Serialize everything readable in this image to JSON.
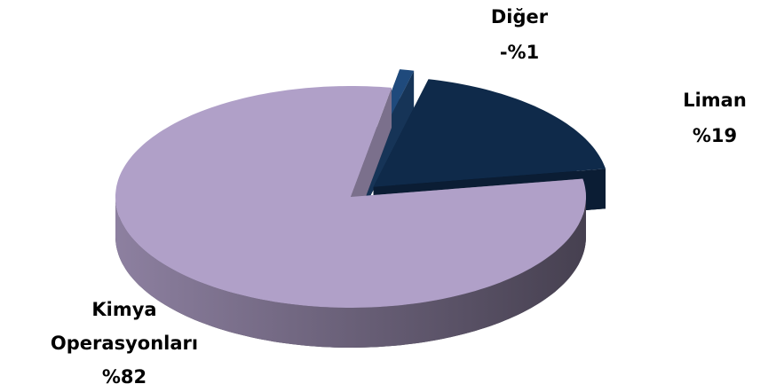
{
  "chart_data": {
    "type": "pie",
    "categories": [
      "Kimya Operasyonları",
      "Liman",
      "Diğer"
    ],
    "values": [
      82,
      19,
      -1
    ],
    "value_labels": [
      "%82",
      "%19",
      "-%1"
    ],
    "colors": [
      "#b0a0c8",
      "#0f2a4a",
      "#1f4a7c"
    ]
  }
}
